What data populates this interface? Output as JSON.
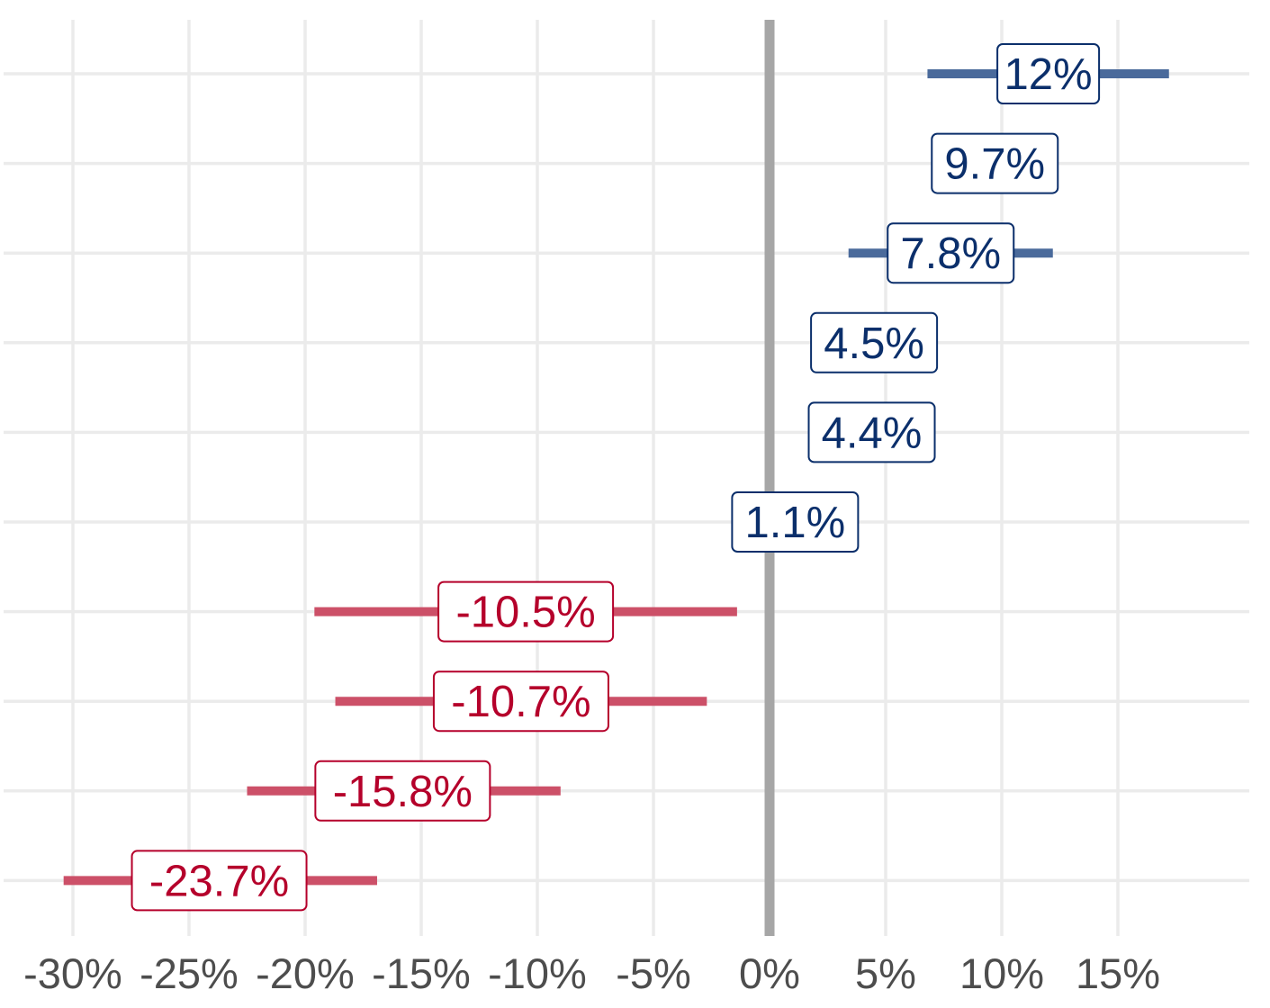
{
  "chart_data": {
    "type": "forest",
    "xlim": [
      -31.5,
      20.5
    ],
    "x_ticks": [
      -30,
      -25,
      -20,
      -15,
      -10,
      -5,
      0,
      5,
      10,
      15
    ],
    "x_tick_labels": [
      "-30%",
      "-25%",
      "-20%",
      "-15%",
      "-10%",
      "-5%",
      "0%",
      "5%",
      "10%",
      "15%"
    ],
    "reference_line": 0,
    "grid": true,
    "colors": {
      "positive_text": "#0b2f6b",
      "positive_bar": "#4a6a9b",
      "negative_text": "#b5002b",
      "negative_bar": "#cc5068"
    },
    "points": [
      {
        "value": 12.0,
        "label": "12%",
        "low": 6.8,
        "high": 17.2
      },
      {
        "value": 9.7,
        "label": "9.7%",
        "low": null,
        "high": null
      },
      {
        "value": 7.8,
        "label": "7.8%",
        "low": 3.4,
        "high": 12.2
      },
      {
        "value": 4.5,
        "label": "4.5%",
        "low": null,
        "high": null
      },
      {
        "value": 4.4,
        "label": "4.4%",
        "low": null,
        "high": null
      },
      {
        "value": 1.1,
        "label": "1.1%",
        "low": null,
        "high": null
      },
      {
        "value": -10.5,
        "label": "-10.5%",
        "low": -19.6,
        "high": -1.4
      },
      {
        "value": -10.7,
        "label": "-10.7%",
        "low": -18.7,
        "high": -2.7
      },
      {
        "value": -15.8,
        "label": "-15.8%",
        "low": -22.5,
        "high": -9.0
      },
      {
        "value": -23.7,
        "label": "-23.7%",
        "low": -30.4,
        "high": -16.9
      }
    ]
  }
}
